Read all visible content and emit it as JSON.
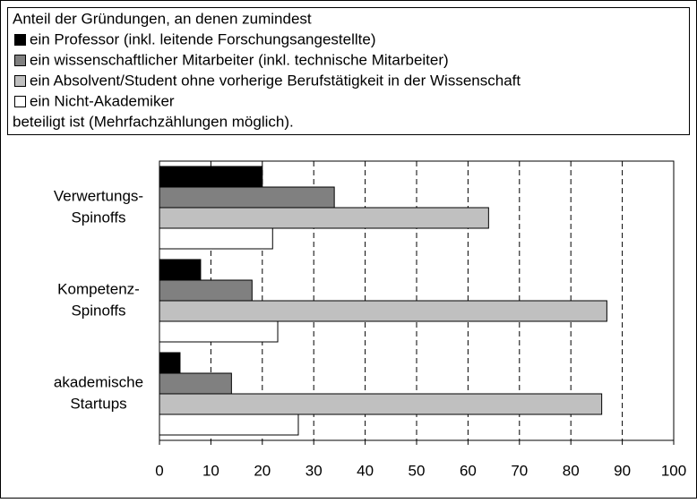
{
  "chart_data": {
    "type": "hbar",
    "title": "Anteil der Gründungen, an denen zumindest",
    "note": "beteiligt ist (Mehrfachzählungen möglich).",
    "categories": [
      [
        "Verwertungs-",
        "Spinoffs"
      ],
      [
        "Kompetenz-",
        "Spinoffs"
      ],
      [
        "akademische",
        "Startups"
      ]
    ],
    "series": [
      {
        "name": "ein Professor (inkl. leitende Forschungsangestellte)",
        "color": "#000000",
        "values": [
          20,
          8,
          4
        ]
      },
      {
        "name": "ein wissenschaftlicher Mitarbeiter (inkl. technische Mitarbeiter)",
        "color": "#808080",
        "values": [
          34,
          18,
          14
        ]
      },
      {
        "name": "ein Absolvent/Student ohne vorherige Berufstätigkeit in der Wissenschaft",
        "color": "#c0c0c0",
        "values": [
          64,
          87,
          86
        ]
      },
      {
        "name": "ein Nicht-Akademiker",
        "color": "#ffffff",
        "values": [
          22,
          23,
          27
        ]
      }
    ],
    "xlim": [
      0,
      100
    ],
    "xticks": [
      0,
      10,
      20,
      30,
      40,
      50,
      60,
      70,
      80,
      90,
      100
    ],
    "grid": true
  }
}
